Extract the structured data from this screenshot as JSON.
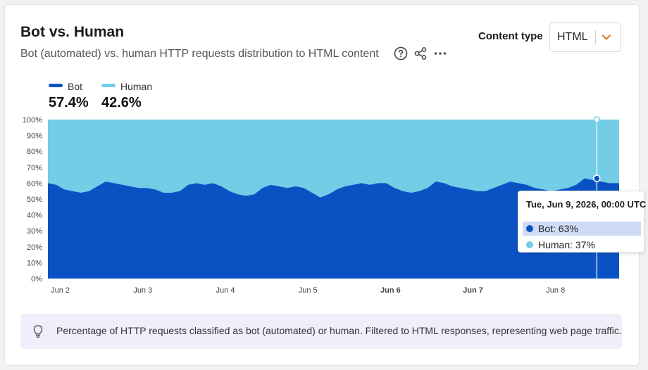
{
  "card": {
    "title": "Bot vs. Human",
    "subtitle": "Bot (automated) vs. human HTTP requests distribution to HTML content"
  },
  "icons": {
    "help": "question-circle-icon",
    "share": "share-icon",
    "more": "more-horizontal-icon",
    "caret": "chevron-down-icon",
    "note": "lightbulb-icon"
  },
  "content_type": {
    "label": "Content type",
    "value": "HTML"
  },
  "legend": [
    {
      "name": "Bot",
      "value": "57.4%",
      "color": "#0a52c4"
    },
    {
      "name": "Human",
      "value": "42.6%",
      "color": "#73cde6"
    }
  ],
  "tooltip": {
    "title": "Tue, Jun 9, 2026, 00:00 UTC",
    "rows": [
      "Bot: 63%",
      "Human: 37%"
    ]
  },
  "note": {
    "text": "Percentage of HTTP requests classified as bot (automated) or human. Filtered to HTML responses, representing web page traffic."
  },
  "colors": {
    "accent_orange": "#e07b20",
    "note_bg": "#f1eefb",
    "bot": "#0a52c4",
    "human": "#73cde6"
  },
  "chart_data": {
    "type": "area",
    "stacked": true,
    "x_labels": [
      "Jun 2",
      "Jun 3",
      "Jun 4",
      "Jun 5",
      "Jun 6",
      "Jun 7",
      "Jun 8"
    ],
    "x_labels_bold": [
      "Jun 6",
      "Jun 7"
    ],
    "x_range_days": [
      1.85,
      8.77
    ],
    "y_ticks": [
      "0%",
      "10%",
      "20%",
      "30%",
      "40%",
      "50%",
      "60%",
      "70%",
      "80%",
      "90%",
      "100%"
    ],
    "ylim": [
      0,
      100
    ],
    "grid": false,
    "legend_position": "top-left",
    "series": [
      {
        "name": "Bot",
        "color": "#0a52c4",
        "points": [
          [
            1.85,
            60
          ],
          [
            1.95,
            59
          ],
          [
            2.05,
            56
          ],
          [
            2.15,
            55
          ],
          [
            2.25,
            54
          ],
          [
            2.35,
            55
          ],
          [
            2.45,
            58
          ],
          [
            2.55,
            61
          ],
          [
            2.65,
            60
          ],
          [
            2.75,
            59
          ],
          [
            2.85,
            58
          ],
          [
            2.95,
            57
          ],
          [
            3.05,
            57
          ],
          [
            3.15,
            56
          ],
          [
            3.25,
            54
          ],
          [
            3.35,
            54
          ],
          [
            3.45,
            55
          ],
          [
            3.55,
            59
          ],
          [
            3.65,
            60
          ],
          [
            3.75,
            59
          ],
          [
            3.85,
            60
          ],
          [
            3.95,
            58
          ],
          [
            4.05,
            55
          ],
          [
            4.15,
            53
          ],
          [
            4.25,
            52
          ],
          [
            4.35,
            53
          ],
          [
            4.45,
            57
          ],
          [
            4.55,
            59
          ],
          [
            4.65,
            58
          ],
          [
            4.75,
            57
          ],
          [
            4.85,
            58
          ],
          [
            4.95,
            57
          ],
          [
            5.05,
            54
          ],
          [
            5.15,
            51
          ],
          [
            5.25,
            53
          ],
          [
            5.35,
            56
          ],
          [
            5.45,
            58
          ],
          [
            5.55,
            59
          ],
          [
            5.65,
            60
          ],
          [
            5.75,
            59
          ],
          [
            5.85,
            60
          ],
          [
            5.95,
            60
          ],
          [
            6.05,
            57
          ],
          [
            6.15,
            55
          ],
          [
            6.25,
            54
          ],
          [
            6.35,
            55
          ],
          [
            6.45,
            57
          ],
          [
            6.55,
            61
          ],
          [
            6.65,
            60
          ],
          [
            6.75,
            58
          ],
          [
            6.85,
            57
          ],
          [
            6.95,
            56
          ],
          [
            7.05,
            55
          ],
          [
            7.15,
            55
          ],
          [
            7.25,
            57
          ],
          [
            7.35,
            59
          ],
          [
            7.45,
            61
          ],
          [
            7.55,
            60
          ],
          [
            7.65,
            59
          ],
          [
            7.75,
            57
          ],
          [
            7.85,
            56
          ],
          [
            7.95,
            55
          ],
          [
            8.05,
            56
          ],
          [
            8.15,
            57
          ],
          [
            8.25,
            59
          ],
          [
            8.35,
            63
          ],
          [
            8.45,
            62
          ],
          [
            8.55,
            61
          ],
          [
            8.65,
            60
          ],
          [
            8.77,
            60
          ]
        ]
      },
      {
        "name": "Human",
        "color": "#73cde6",
        "note": "remainder to 100%"
      }
    ],
    "cursor": {
      "x": 8.5,
      "bot": 63,
      "human": 37
    }
  }
}
